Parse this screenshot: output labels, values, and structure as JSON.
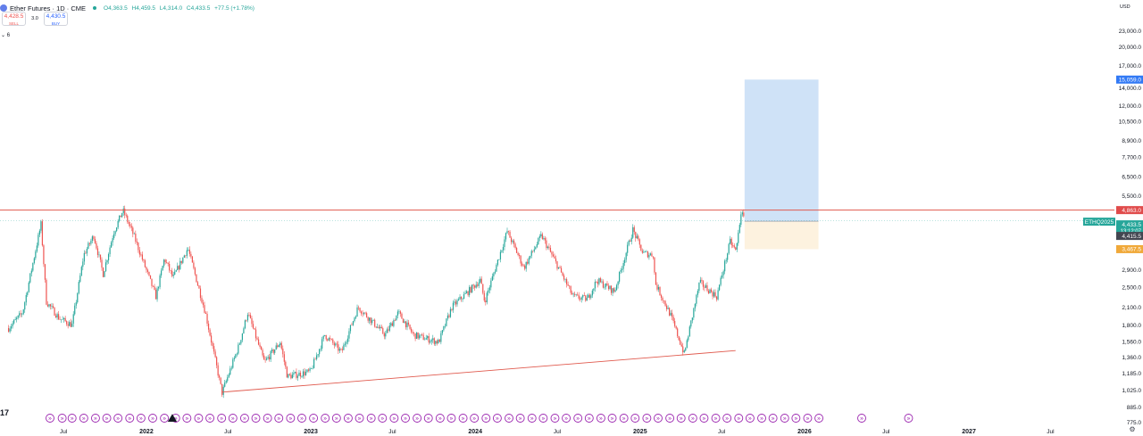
{
  "header": {
    "symbol": "Ether Futures · 1D · CME",
    "ohlc": {
      "o": "O4,363.5",
      "h": "H4,459.5",
      "l": "L4,314.0",
      "c": "C4,433.5",
      "chg": "+77.5 (+1.78%)"
    }
  },
  "trade": {
    "sell_price": "4,428.5",
    "sell_label": "SELL",
    "spread": "3.0",
    "buy_price": "4,430.5",
    "buy_label": "BUY"
  },
  "indicator_toggle": "⌄ 6",
  "logo": "17",
  "colors": {
    "up": "#26a69a",
    "down": "#ef5350",
    "line": "#e05a4e",
    "target_zone": "#cfe2f7",
    "stop_zone": "#fdf2df",
    "accent": "#2962ff"
  },
  "chart_data": {
    "type": "candlestick",
    "currency": "USD",
    "y_scale": "log",
    "ylim": [
      760,
      30000
    ],
    "y_ticks": [
      {
        "v": 23000,
        "label": "23,000.0"
      },
      {
        "v": 20000,
        "label": "20,000.0"
      },
      {
        "v": 17000,
        "label": "17,000.0"
      },
      {
        "v": 14000,
        "label": "14,000.0"
      },
      {
        "v": 12000,
        "label": "12,000.0"
      },
      {
        "v": 10500,
        "label": "10,500.0"
      },
      {
        "v": 8900,
        "label": "8,900.0"
      },
      {
        "v": 7700,
        "label": "7,700.0"
      },
      {
        "v": 6500,
        "label": "6,500.0"
      },
      {
        "v": 5500,
        "label": "5,500.0"
      },
      {
        "v": 2900,
        "label": "2,900.0"
      },
      {
        "v": 2500,
        "label": "2,500.0"
      },
      {
        "v": 2100,
        "label": "2,100.0"
      },
      {
        "v": 1800,
        "label": "1,800.0"
      },
      {
        "v": 1560,
        "label": "1,560.0"
      },
      {
        "v": 1360,
        "label": "1,360.0"
      },
      {
        "v": 1185,
        "label": "1,185.0"
      },
      {
        "v": 1025,
        "label": "1,025.0"
      },
      {
        "v": 885,
        "label": "885.0"
      },
      {
        "v": 775,
        "label": "775.0"
      }
    ],
    "x_range": [
      "2021-02-10",
      "2027-11-20"
    ],
    "x_ticks": [
      {
        "t": "2021-07-01",
        "label": "Jul"
      },
      {
        "t": "2022-01-01",
        "label": "2022"
      },
      {
        "t": "2022-07-01",
        "label": "Jul"
      },
      {
        "t": "2023-01-01",
        "label": "2023"
      },
      {
        "t": "2023-07-01",
        "label": "Jul"
      },
      {
        "t": "2024-01-01",
        "label": "2024"
      },
      {
        "t": "2024-07-01",
        "label": "Jul"
      },
      {
        "t": "2025-01-01",
        "label": "2025"
      },
      {
        "t": "2025-07-01",
        "label": "Jul"
      },
      {
        "t": "2026-01-01",
        "label": "2026"
      },
      {
        "t": "2026-07-01",
        "label": "Jul"
      },
      {
        "t": "2027-01-01",
        "label": "2027"
      },
      {
        "t": "2027-07-01",
        "label": "Jul"
      }
    ],
    "price_path": [
      [
        "2021-03-01",
        1750
      ],
      [
        "2021-04-01",
        2000
      ],
      [
        "2021-05-12",
        4300
      ],
      [
        "2021-05-24",
        2200
      ],
      [
        "2021-06-22",
        1900
      ],
      [
        "2021-07-20",
        1800
      ],
      [
        "2021-08-15",
        3300
      ],
      [
        "2021-09-06",
        3900
      ],
      [
        "2021-09-27",
        2800
      ],
      [
        "2021-10-20",
        4000
      ],
      [
        "2021-11-10",
        4850
      ],
      [
        "2021-12-04",
        3900
      ],
      [
        "2022-01-22",
        2300
      ],
      [
        "2022-02-10",
        3200
      ],
      [
        "2022-03-01",
        2700
      ],
      [
        "2022-04-03",
        3500
      ],
      [
        "2022-05-12",
        2000
      ],
      [
        "2022-06-18",
        1000
      ],
      [
        "2022-07-25",
        1500
      ],
      [
        "2022-08-14",
        2000
      ],
      [
        "2022-09-20",
        1300
      ],
      [
        "2022-10-25",
        1550
      ],
      [
        "2022-11-10",
        1150
      ],
      [
        "2022-12-31",
        1200
      ],
      [
        "2023-02-01",
        1650
      ],
      [
        "2023-03-10",
        1420
      ],
      [
        "2023-04-16",
        2100
      ],
      [
        "2023-06-15",
        1650
      ],
      [
        "2023-07-14",
        2000
      ],
      [
        "2023-08-17",
        1650
      ],
      [
        "2023-10-12",
        1550
      ],
      [
        "2023-11-10",
        2100
      ],
      [
        "2024-01-12",
        2650
      ],
      [
        "2024-01-22",
        2200
      ],
      [
        "2024-03-12",
        4050
      ],
      [
        "2024-04-18",
        2950
      ],
      [
        "2024-05-27",
        3900
      ],
      [
        "2024-07-04",
        2950
      ],
      [
        "2024-08-05",
        2300
      ],
      [
        "2024-09-06",
        2250
      ],
      [
        "2024-09-27",
        2650
      ],
      [
        "2024-11-05",
        2400
      ],
      [
        "2024-12-16",
        4100
      ],
      [
        "2025-01-07",
        3350
      ],
      [
        "2025-01-31",
        3300
      ],
      [
        "2025-02-03",
        2600
      ],
      [
        "2025-03-10",
        1950
      ],
      [
        "2025-04-09",
        1400
      ],
      [
        "2025-05-13",
        2600
      ],
      [
        "2025-06-20",
        2300
      ],
      [
        "2025-07-20",
        3700
      ],
      [
        "2025-08-02",
        3400
      ],
      [
        "2025-08-13",
        4780
      ],
      [
        "2025-08-21",
        4433.5
      ]
    ],
    "last_price": 4433.5,
    "price_labels": [
      {
        "v": 15059,
        "label": "15,059.0",
        "color": "#3179f5"
      },
      {
        "v": 4863,
        "label": "4,863.0",
        "color": "#e04b4b"
      },
      {
        "v": 4433.5,
        "label": "4,433.5",
        "sub": "13:12:07",
        "color": "#26a69a"
      },
      {
        "v": 4415.5,
        "label": "4,415.5",
        "color": "#434651"
      },
      {
        "v": 3467.5,
        "label": "3,467.5",
        "color": "#f0a93a"
      }
    ],
    "contract_label": "ETHQ2025",
    "horizontal_line": 4863,
    "trend_line": {
      "start": [
        "2022-06-18",
        1005
      ],
      "end": [
        "2025-08-01",
        1440
      ]
    },
    "position": {
      "entry": 4415.5,
      "target": 15059,
      "stop": 3467.5,
      "start": "2025-08-21",
      "end": "2026-02-01"
    },
    "event_markers": {
      "glyph": "»",
      "dates": [
        "2021-06-01",
        "2021-06-28",
        "2021-07-20",
        "2021-08-15",
        "2021-09-10",
        "2021-10-05",
        "2021-10-30",
        "2021-11-25",
        "2021-12-20",
        "2022-01-15",
        "2022-02-10",
        "2022-03-07",
        "2022-04-01",
        "2022-04-27",
        "2022-05-22",
        "2022-06-17",
        "2022-07-12",
        "2022-08-07",
        "2022-09-01",
        "2022-09-27",
        "2022-10-22",
        "2022-11-17",
        "2022-12-12",
        "2023-01-07",
        "2023-02-02",
        "2023-02-27",
        "2023-03-25",
        "2023-04-19",
        "2023-05-15",
        "2023-06-09",
        "2023-07-05",
        "2023-07-30",
        "2023-08-25",
        "2023-09-19",
        "2023-10-15",
        "2023-11-09",
        "2023-12-05",
        "2023-12-30",
        "2024-01-25",
        "2024-02-19",
        "2024-03-16",
        "2024-04-10",
        "2024-05-06",
        "2024-05-31",
        "2024-06-26",
        "2024-07-21",
        "2024-08-16",
        "2024-09-10",
        "2024-10-06",
        "2024-10-31",
        "2024-11-26",
        "2024-12-21",
        "2025-01-16",
        "2025-02-10",
        "2025-03-08",
        "2025-04-02",
        "2025-04-28",
        "2025-05-23",
        "2025-06-18",
        "2025-07-13",
        "2025-08-08",
        "2025-09-02",
        "2025-09-28",
        "2025-10-23",
        "2025-11-18",
        "2025-12-13",
        "2026-01-08",
        "2026-02-02",
        "2026-05-08",
        "2026-08-20"
      ]
    }
  }
}
